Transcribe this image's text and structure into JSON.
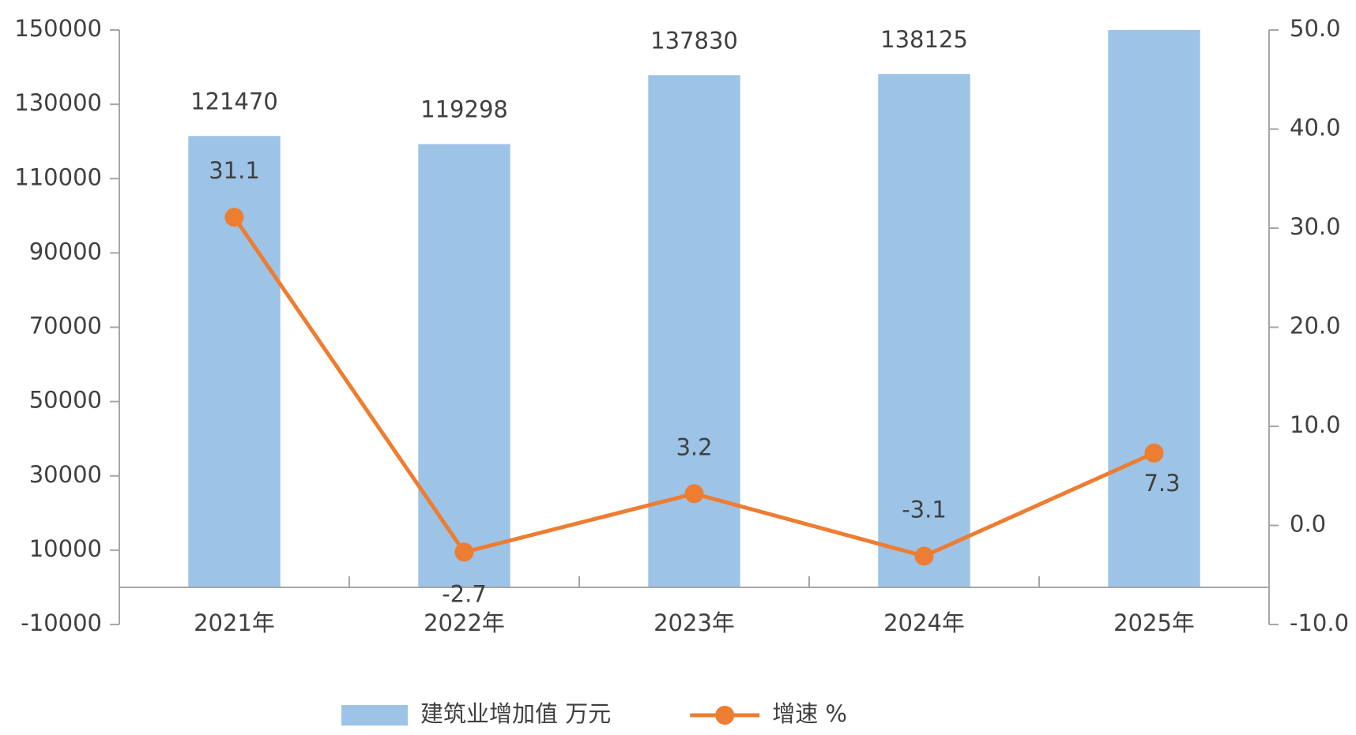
{
  "chart_data": {
    "type": "bar-line",
    "categories": [
      "2021年",
      "2022年",
      "2023年",
      "2024年",
      "2025年"
    ],
    "series": [
      {
        "name": "建筑业增加值 万元",
        "type": "bar",
        "color": "#9dc3e6",
        "values": [
          121470,
          119298,
          137830,
          138125,
          150000
        ],
        "value_labels": [
          "121470",
          "119298",
          "137830",
          "138125",
          null
        ]
      },
      {
        "name": "增速 %",
        "type": "line",
        "axis": "y2",
        "color": "#ed7d31",
        "values": [
          31.1,
          -2.7,
          3.2,
          -3.1,
          7.3
        ]
      }
    ],
    "ylim": [
      -10000,
      150000
    ],
    "yticks": [
      -10000,
      10000,
      30000,
      50000,
      70000,
      90000,
      110000,
      130000,
      150000
    ],
    "y2lim": [
      -10,
      50
    ],
    "y2ticks": [
      {
        "value": -10,
        "label": "-10.0"
      },
      {
        "value": 0,
        "label": "0.0"
      },
      {
        "value": 10,
        "label": "10.0"
      },
      {
        "value": 20,
        "label": "20.0"
      },
      {
        "value": 30,
        "label": "30.0"
      },
      {
        "value": 40,
        "label": "40.0"
      },
      {
        "value": 50,
        "label": "50.0"
      }
    ],
    "legend": "bottom",
    "grid": false
  }
}
